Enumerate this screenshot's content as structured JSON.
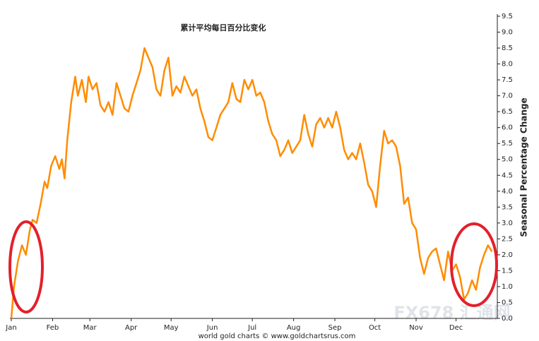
{
  "chart_data": {
    "type": "line",
    "title": "累计平均每日百分比变化",
    "ylabel": "Seasonal Percentage Change",
    "footer": "world gold charts © www.goldchartsrus.com",
    "watermark": "FX678 汇通网",
    "xlim": [
      0,
      365
    ],
    "xticks": [
      {
        "value": 0,
        "label": "Jan"
      },
      {
        "value": 31,
        "label": "Feb"
      },
      {
        "value": 59,
        "label": "Mar"
      },
      {
        "value": 90,
        "label": "Apr"
      },
      {
        "value": 120,
        "label": "May"
      },
      {
        "value": 151,
        "label": "Jun"
      },
      {
        "value": 181,
        "label": "Jul"
      },
      {
        "value": 212,
        "label": "Aug"
      },
      {
        "value": 243,
        "label": "Sep"
      },
      {
        "value": 273,
        "label": "Oct"
      },
      {
        "value": 304,
        "label": "Nov"
      },
      {
        "value": 334,
        "label": "Dec"
      }
    ],
    "ylim": [
      0,
      9.5
    ],
    "yticks": [
      {
        "value": 0,
        "label": "0.0"
      },
      0.5,
      {
        "value": 1,
        "label": "1.0"
      },
      1.5,
      {
        "value": 2,
        "label": "2.0"
      },
      2.5,
      {
        "value": 3,
        "label": "3.0"
      },
      3.5,
      {
        "value": 4,
        "label": "4.0"
      },
      4.5,
      {
        "value": 5,
        "label": "5.0"
      },
      5.5,
      {
        "value": 6,
        "label": "6.0"
      },
      6.5,
      {
        "value": 7,
        "label": "7.0"
      },
      7.5,
      {
        "value": 8,
        "label": "8.0"
      },
      8.5,
      {
        "value": 9,
        "label": "9.0"
      },
      9.5
    ],
    "grid": false,
    "series": [
      {
        "name": "Seasonal Percentage Change",
        "color": "#ff8c00",
        "x": [
          0,
          2,
          5,
          8,
          11,
          14,
          16,
          19,
          22,
          25,
          27,
          30,
          33,
          36,
          38,
          40,
          42,
          45,
          48,
          50,
          53,
          56,
          58,
          61,
          64,
          67,
          70,
          73,
          76,
          79,
          82,
          85,
          88,
          91,
          94,
          97,
          100,
          103,
          106,
          109,
          112,
          115,
          118,
          121,
          124,
          127,
          130,
          133,
          136,
          139,
          142,
          145,
          148,
          151,
          154,
          157,
          160,
          163,
          166,
          169,
          172,
          175,
          178,
          181,
          184,
          187,
          190,
          193,
          196,
          199,
          202,
          205,
          208,
          211,
          214,
          217,
          220,
          223,
          226,
          229,
          232,
          235,
          238,
          241,
          244,
          247,
          250,
          253,
          256,
          259,
          262,
          265,
          268,
          271,
          274,
          277,
          280,
          283,
          286,
          289,
          292,
          295,
          298,
          301,
          304,
          307,
          310,
          313,
          316,
          319,
          322,
          325,
          328,
          331,
          334,
          337,
          340,
          343,
          346,
          349,
          352,
          355,
          358,
          361
        ],
        "values": [
          0.0,
          1.0,
          1.8,
          2.3,
          2.0,
          2.8,
          3.1,
          3.0,
          3.6,
          4.3,
          4.1,
          4.8,
          5.1,
          4.7,
          5.0,
          4.4,
          5.6,
          6.8,
          7.6,
          7.0,
          7.5,
          6.8,
          7.6,
          7.2,
          7.4,
          6.7,
          6.5,
          6.8,
          6.4,
          7.4,
          7.0,
          6.6,
          6.5,
          7.0,
          7.4,
          7.8,
          8.5,
          8.2,
          7.9,
          7.2,
          7.0,
          7.8,
          8.2,
          7.0,
          7.3,
          7.1,
          7.6,
          7.3,
          7.0,
          7.2,
          6.6,
          6.2,
          5.7,
          5.6,
          6.0,
          6.4,
          6.6,
          6.8,
          7.4,
          6.9,
          6.8,
          7.5,
          7.2,
          7.5,
          7.0,
          7.1,
          6.8,
          6.2,
          5.8,
          5.6,
          5.1,
          5.3,
          5.6,
          5.2,
          5.4,
          5.6,
          6.4,
          5.8,
          5.4,
          6.1,
          6.3,
          6.0,
          6.3,
          6.0,
          6.5,
          6.0,
          5.3,
          5.0,
          5.2,
          5.0,
          5.5,
          4.9,
          4.2,
          4.0,
          3.5,
          4.8,
          5.9,
          5.5,
          5.6,
          5.4,
          4.8,
          3.6,
          3.8,
          3.0,
          2.8,
          1.9,
          1.4,
          1.9,
          2.1,
          2.2,
          1.7,
          1.2,
          2.1,
          1.5,
          1.7,
          1.3,
          0.6,
          0.8,
          1.2,
          0.9,
          1.6,
          2.0,
          2.3,
          2.1
        ]
      }
    ]
  }
}
